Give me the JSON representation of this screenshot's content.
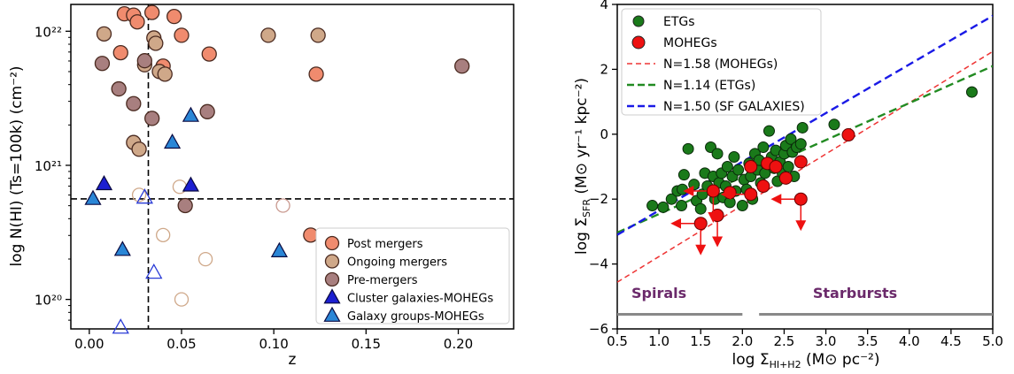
{
  "chart_data": [
    {
      "type": "scatter",
      "xlabel": "z",
      "ylabel": "log N(HI) (Ts=100k) (cm⁻²)",
      "xlim": [
        -0.01,
        0.23
      ],
      "ylim_log10": [
        19.78,
        22.2
      ],
      "y_scale": "log",
      "x_ticks": [
        "0.00",
        "0.05",
        "0.10",
        "0.15",
        "0.20"
      ],
      "y_ticks": [
        "10²⁰",
        "10²¹",
        "10²²"
      ],
      "ref_lines": {
        "z": 0.032,
        "log_N_HI": 20.75
      },
      "legend_position": "lower right",
      "series": [
        {
          "name": "Post mergers",
          "marker": "circle",
          "color": "#f08b6e",
          "points": [
            {
              "x": 0.019,
              "y": 22.13
            },
            {
              "x": 0.024,
              "y": 22.12
            },
            {
              "x": 0.026,
              "y": 22.07
            },
            {
              "x": 0.034,
              "y": 22.14
            },
            {
              "x": 0.046,
              "y": 22.11
            },
            {
              "x": 0.05,
              "y": 21.97
            },
            {
              "x": 0.017,
              "y": 21.84
            },
            {
              "x": 0.04,
              "y": 21.74
            },
            {
              "x": 0.065,
              "y": 21.83
            },
            {
              "x": 0.123,
              "y": 21.68
            },
            {
              "x": 0.12,
              "y": 20.48
            }
          ]
        },
        {
          "name": "Ongoing mergers",
          "marker": "circle",
          "color": "#cfa889",
          "points": [
            {
              "x": 0.008,
              "y": 21.98
            },
            {
              "x": 0.035,
              "y": 21.95
            },
            {
              "x": 0.036,
              "y": 21.91
            },
            {
              "x": 0.097,
              "y": 21.97
            },
            {
              "x": 0.124,
              "y": 21.97
            },
            {
              "x": 0.03,
              "y": 21.75
            },
            {
              "x": 0.038,
              "y": 21.7
            },
            {
              "x": 0.041,
              "y": 21.68
            },
            {
              "x": 0.024,
              "y": 21.17
            },
            {
              "x": 0.027,
              "y": 21.12
            }
          ]
        },
        {
          "name": "Ongoing mergers (open)",
          "marker": "circle-open",
          "color": "#cfa889",
          "points": [
            {
              "x": 0.027,
              "y": 20.78
            },
            {
              "x": 0.049,
              "y": 20.84
            },
            {
              "x": 0.04,
              "y": 20.48
            },
            {
              "x": 0.063,
              "y": 20.3
            },
            {
              "x": 0.05,
              "y": 20.0
            }
          ]
        },
        {
          "name": "Pre-mergers",
          "marker": "circle",
          "color": "#a87f7f",
          "points": [
            {
              "x": 0.007,
              "y": 21.76
            },
            {
              "x": 0.03,
              "y": 21.78
            },
            {
              "x": 0.016,
              "y": 21.57
            },
            {
              "x": 0.024,
              "y": 21.46
            },
            {
              "x": 0.034,
              "y": 21.35
            },
            {
              "x": 0.064,
              "y": 21.4
            },
            {
              "x": 0.202,
              "y": 21.74
            },
            {
              "x": 0.052,
              "y": 20.7
            }
          ]
        },
        {
          "name": "Pre-mergers (open)",
          "marker": "circle-open",
          "color": "#c9998f",
          "points": [
            {
              "x": 0.105,
              "y": 20.7
            }
          ]
        },
        {
          "name": "Cluster galaxies-MOHEGs",
          "marker": "triangle",
          "color": "#1c1fd1",
          "points": [
            {
              "x": 0.008,
              "y": 20.86
            },
            {
              "x": 0.055,
              "y": 20.85
            }
          ]
        },
        {
          "name": "Cluster galaxies-MOHEGs (open)",
          "marker": "triangle-open",
          "color": "#2a3bd6",
          "points": [
            {
              "x": 0.03,
              "y": 20.76
            },
            {
              "x": 0.035,
              "y": 20.2
            },
            {
              "x": 0.017,
              "y": 19.79
            }
          ]
        },
        {
          "name": "Galaxy groups-MOHEGs",
          "marker": "triangle",
          "color": "#2a86d6",
          "points": [
            {
              "x": 0.055,
              "y": 21.37
            },
            {
              "x": 0.045,
              "y": 21.17
            },
            {
              "x": 0.002,
              "y": 20.75
            },
            {
              "x": 0.018,
              "y": 20.37
            },
            {
              "x": 0.103,
              "y": 20.36
            }
          ]
        }
      ]
    },
    {
      "type": "scatter",
      "xlabel": "log Σ",
      "xlabel_sub": "HI+H2",
      "xlabel_tail": " (M⊙ pc⁻²)",
      "ylabel": "log Σ",
      "ylabel_sub": "SFR",
      "ylabel_tail": " (M⊙ yr⁻¹ kpc⁻²)",
      "xlim": [
        0.5,
        5.0
      ],
      "ylim": [
        -6,
        4
      ],
      "x_ticks": [
        "0.5",
        "1.0",
        "1.5",
        "2.0",
        "2.5",
        "3.0",
        "3.5",
        "4.0",
        "4.5",
        "5.0"
      ],
      "y_ticks": [
        "−6",
        "−4",
        "−2",
        "0",
        "2",
        "4"
      ],
      "legend_position": "upper left",
      "legend": [
        {
          "label": "ETGs",
          "kind": "marker",
          "color": "#1a7a1a"
        },
        {
          "label": "MOHEGs",
          "kind": "marker",
          "color": "#ee1111"
        },
        {
          "label": "N=1.58 (MOHEGs)",
          "kind": "line",
          "color": "#ee3333"
        },
        {
          "label": "N=1.14 (ETGs)",
          "kind": "line",
          "color": "#228b22"
        },
        {
          "label": "N=1.50 (SF GALAXIES)",
          "kind": "line",
          "color": "#1a1ae6"
        }
      ],
      "fit_lines": [
        {
          "name": "N=1.58 (MOHEGs)",
          "slope": 1.58,
          "intercept": -5.35,
          "color": "#ee3333"
        },
        {
          "name": "N=1.14 (ETGs)",
          "slope": 1.14,
          "intercept": -3.6,
          "color": "#228b22"
        },
        {
          "name": "N=1.50 (SF GALAXIES)",
          "slope": 1.5,
          "intercept": -3.85,
          "color": "#1a1ae6"
        }
      ],
      "band_labels": [
        {
          "text": "Spirals",
          "x_range": [
            0.5,
            2.0
          ]
        },
        {
          "text": "Starbursts",
          "x_range": [
            2.2,
            5.0
          ]
        }
      ],
      "etgs": [
        {
          "x": 0.92,
          "y": -2.2
        },
        {
          "x": 1.05,
          "y": -2.25
        },
        {
          "x": 1.15,
          "y": -2.0
        },
        {
          "x": 1.22,
          "y": -1.75
        },
        {
          "x": 1.27,
          "y": -2.2
        },
        {
          "x": 1.28,
          "y": -1.7
        },
        {
          "x": 1.3,
          "y": -1.25
        },
        {
          "x": 1.35,
          "y": -0.45
        },
        {
          "x": 1.42,
          "y": -1.55
        },
        {
          "x": 1.45,
          "y": -2.05
        },
        {
          "x": 1.5,
          "y": -2.3
        },
        {
          "x": 1.52,
          "y": -1.85
        },
        {
          "x": 1.55,
          "y": -1.2
        },
        {
          "x": 1.58,
          "y": -1.6
        },
        {
          "x": 1.62,
          "y": -0.4
        },
        {
          "x": 1.65,
          "y": -1.3
        },
        {
          "x": 1.67,
          "y": -2.0
        },
        {
          "x": 1.7,
          "y": -0.6
        },
        {
          "x": 1.72,
          "y": -1.5
        },
        {
          "x": 1.75,
          "y": -1.2
        },
        {
          "x": 1.77,
          "y": -1.95
        },
        {
          "x": 1.8,
          "y": -1.6
        },
        {
          "x": 1.82,
          "y": -1.0
        },
        {
          "x": 1.85,
          "y": -2.1
        },
        {
          "x": 1.88,
          "y": -1.3
        },
        {
          "x": 1.9,
          "y": -0.7
        },
        {
          "x": 1.92,
          "y": -1.75
        },
        {
          "x": 1.95,
          "y": -1.1
        },
        {
          "x": 2.0,
          "y": -2.2
        },
        {
          "x": 2.02,
          "y": -1.4
        },
        {
          "x": 2.05,
          "y": -1.7
        },
        {
          "x": 2.08,
          "y": -0.9
        },
        {
          "x": 2.1,
          "y": -1.3
        },
        {
          "x": 2.12,
          "y": -2.0
        },
        {
          "x": 2.15,
          "y": -0.6
        },
        {
          "x": 2.18,
          "y": -1.1
        },
        {
          "x": 2.2,
          "y": -0.8
        },
        {
          "x": 2.22,
          "y": -1.5
        },
        {
          "x": 2.25,
          "y": -0.4
        },
        {
          "x": 2.27,
          "y": -1.2
        },
        {
          "x": 2.3,
          "y": -0.9
        },
        {
          "x": 2.32,
          "y": 0.1
        },
        {
          "x": 2.35,
          "y": -0.7
        },
        {
          "x": 2.38,
          "y": -1.05
        },
        {
          "x": 2.4,
          "y": -0.5
        },
        {
          "x": 2.42,
          "y": -1.45
        },
        {
          "x": 2.45,
          "y": -0.85
        },
        {
          "x": 2.48,
          "y": -1.2
        },
        {
          "x": 2.5,
          "y": -0.6
        },
        {
          "x": 2.52,
          "y": -0.35
        },
        {
          "x": 2.55,
          "y": -1.0
        },
        {
          "x": 2.58,
          "y": -0.15
        },
        {
          "x": 2.6,
          "y": -0.55
        },
        {
          "x": 2.62,
          "y": -1.3
        },
        {
          "x": 2.65,
          "y": -0.4
        },
        {
          "x": 2.7,
          "y": -0.3
        },
        {
          "x": 2.72,
          "y": 0.2
        },
        {
          "x": 3.1,
          "y": 0.3
        },
        {
          "x": 4.75,
          "y": 1.3
        }
      ],
      "mohegs": [
        {
          "x": 1.5,
          "y": -2.75,
          "limit": "left-down"
        },
        {
          "x": 1.7,
          "y": -2.5,
          "limit": "down"
        },
        {
          "x": 1.65,
          "y": -1.75,
          "limit": "left-down"
        },
        {
          "x": 1.85,
          "y": -1.8,
          "limit": "none"
        },
        {
          "x": 2.1,
          "y": -1.85,
          "limit": "left"
        },
        {
          "x": 2.25,
          "y": -1.6,
          "limit": "none"
        },
        {
          "x": 2.7,
          "y": -2.0,
          "limit": "left-down"
        },
        {
          "x": 2.52,
          "y": -1.35,
          "limit": "none"
        },
        {
          "x": 2.1,
          "y": -1.0,
          "limit": "none"
        },
        {
          "x": 2.3,
          "y": -0.9,
          "limit": "none"
        },
        {
          "x": 2.7,
          "y": -0.85,
          "limit": "none"
        },
        {
          "x": 3.27,
          "y": -0.02,
          "limit": "none"
        },
        {
          "x": 2.4,
          "y": -1.0,
          "limit": "none"
        }
      ]
    }
  ]
}
